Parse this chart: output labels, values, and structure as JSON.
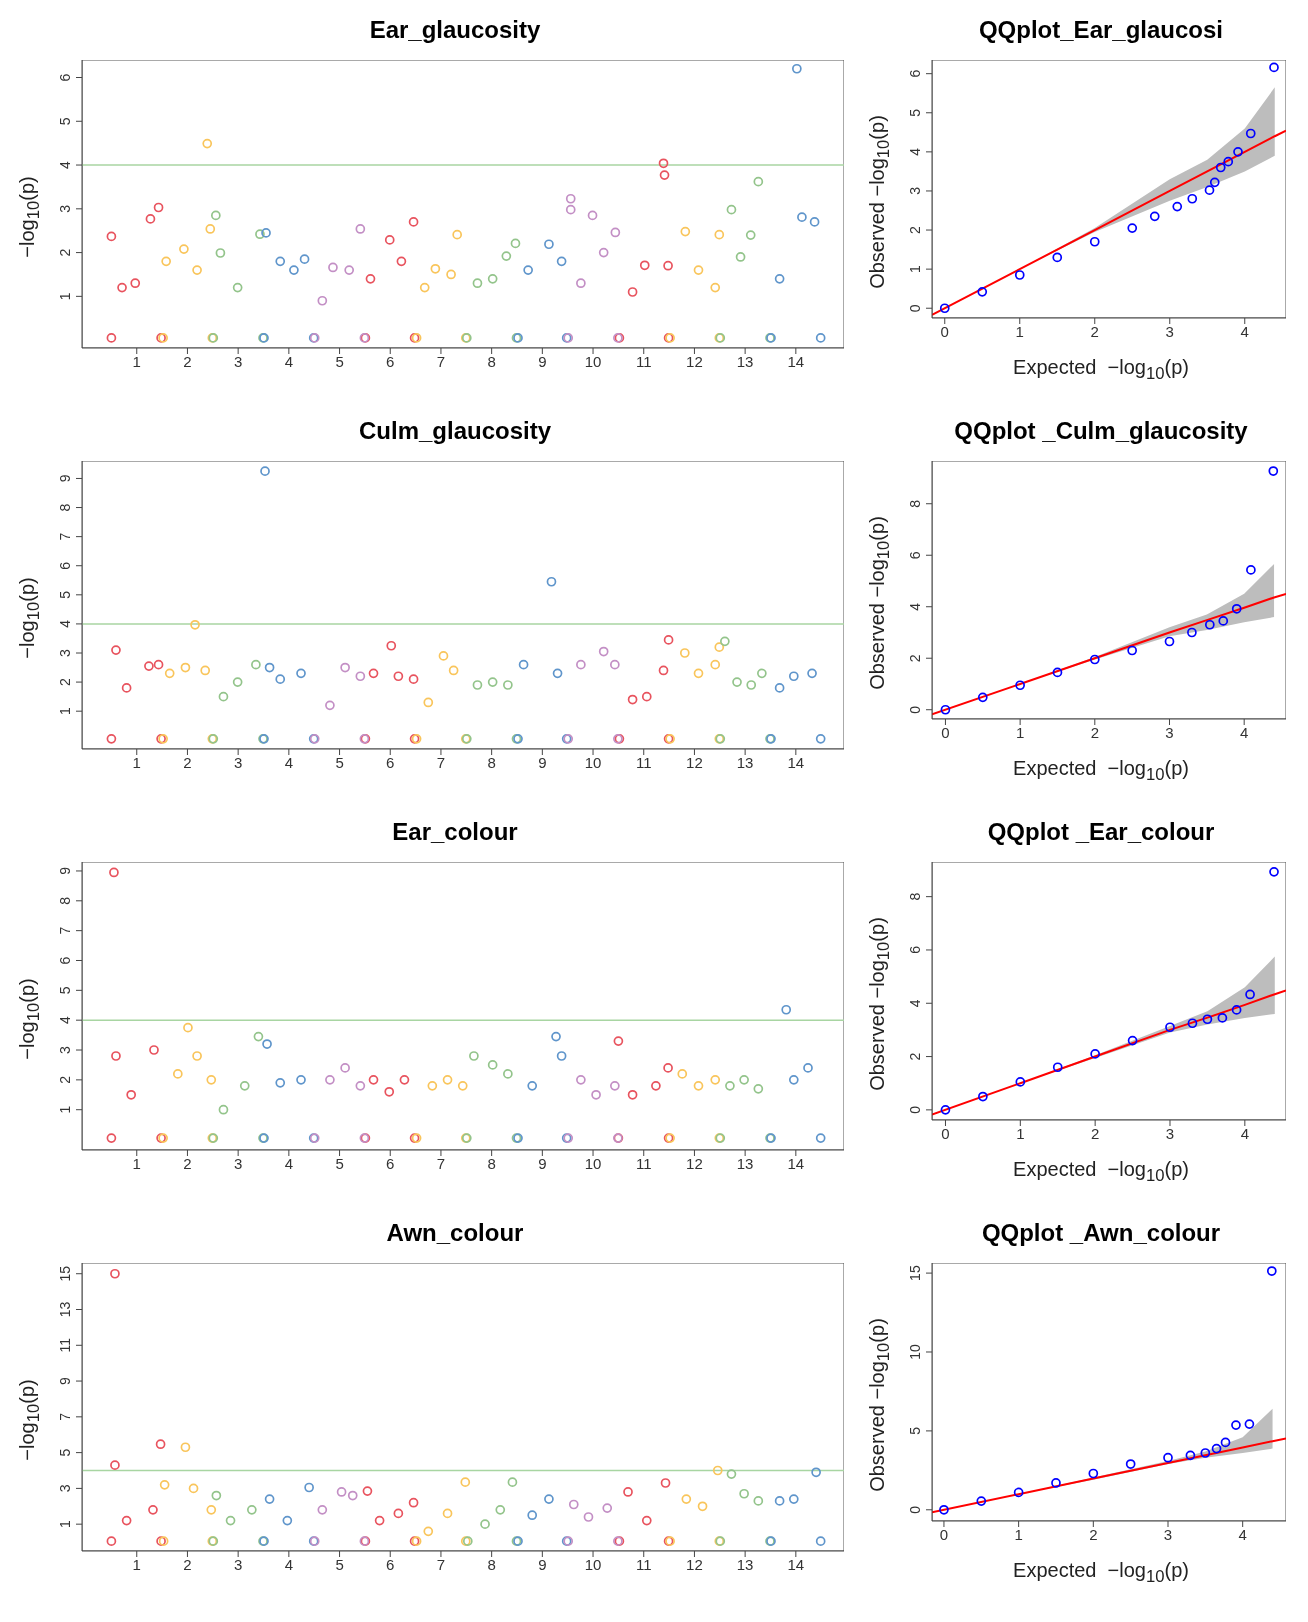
{
  "chart_data": [
    {
      "type": "scatter",
      "title": "Ear_glaucosity",
      "ylabel": "−log$_{10}$(p)",
      "marker": "circle",
      "xlim": [
        -0.08,
        14.95
      ],
      "xticks": [
        1,
        2,
        3,
        4,
        5,
        6,
        7,
        8,
        9,
        10,
        11,
        12,
        13,
        14
      ],
      "ylim": [
        -0.18,
        6.4
      ],
      "yticks": [
        1,
        2,
        3,
        4,
        5,
        6
      ],
      "ref_lines": [
        {
          "axis": "y",
          "value": 4,
          "color": "#a8d5a2"
        }
      ],
      "series": [
        {
          "color": "#e8535e",
          "x": [
            0.5,
            0.5,
            0.71,
            0.97,
            1.27,
            1.43,
            1.48,
            5.51,
            5.61,
            5.99,
            6.22,
            6.46,
            6.48,
            10.52,
            10.78,
            11.02,
            11.39,
            11.41,
            11.48,
            11.49
          ],
          "values": [
            0.05,
            2.37,
            1.2,
            1.3,
            2.77,
            3.03,
            0.05,
            0.05,
            1.4,
            2.29,
            1.8,
            2.7,
            0.05,
            0.05,
            1.1,
            1.71,
            4.04,
            3.77,
            1.7,
            0.05
          ]
        },
        {
          "color": "#f9c55b",
          "x": [
            1.52,
            1.58,
            1.93,
            2.19,
            2.39,
            2.45,
            2.49,
            6.52,
            6.68,
            6.89,
            7.2,
            7.32,
            7.49,
            11.52,
            11.82,
            12.08,
            12.41,
            12.49,
            12.49
          ],
          "values": [
            0.05,
            1.8,
            2.08,
            1.6,
            4.49,
            2.54,
            0.05,
            0.05,
            1.2,
            1.63,
            1.5,
            2.41,
            0.05,
            0.05,
            2.48,
            1.6,
            1.2,
            2.41,
            0.05
          ]
        },
        {
          "color": "#93c48b",
          "x": [
            2.51,
            2.56,
            2.65,
            2.99,
            3.43,
            3.49,
            7.51,
            7.72,
            8.02,
            8.29,
            8.47,
            8.49,
            12.51,
            12.73,
            12.91,
            13.11,
            13.26,
            13.49
          ],
          "values": [
            0.05,
            2.85,
            1.99,
            1.2,
            2.42,
            0.05,
            0.05,
            1.3,
            1.4,
            1.92,
            2.21,
            0.05,
            0.05,
            2.98,
            1.9,
            2.4,
            3.62,
            0.05
          ]
        },
        {
          "color": "#5f95cb",
          "x": [
            3.51,
            3.55,
            3.83,
            4.1,
            4.31,
            4.49,
            8.52,
            8.72,
            9.13,
            9.38,
            9.48,
            13.51,
            13.68,
            14.02,
            14.12,
            14.37,
            14.49
          ],
          "values": [
            0.05,
            2.45,
            1.8,
            1.6,
            1.85,
            0.05,
            0.05,
            1.6,
            2.19,
            1.8,
            0.05,
            0.05,
            1.4,
            6.2,
            2.81,
            2.7,
            0.05
          ]
        },
        {
          "color": "#c38fc5",
          "x": [
            4.51,
            4.66,
            4.87,
            5.19,
            5.41,
            5.49,
            9.51,
            9.56,
            9.56,
            9.76,
            9.99,
            10.21,
            10.44,
            10.49
          ],
          "values": [
            0.05,
            0.9,
            1.66,
            1.6,
            2.54,
            0.05,
            0.05,
            3.23,
            2.98,
            1.3,
            2.85,
            2.0,
            2.46,
            0.05
          ]
        }
      ]
    },
    {
      "type": "scatter",
      "title": "QQplot_Ear_glaucosi",
      "xlabel": "Expected  −log$_{10}$(p)",
      "ylabel": "Observed  −log$_{10}$(p)",
      "xlim": [
        -0.17,
        4.55
      ],
      "xticks": [
        0,
        1,
        2,
        3,
        4
      ],
      "ylim": [
        -0.25,
        6.35
      ],
      "yticks": [
        0,
        1,
        2,
        3,
        4,
        5,
        6
      ],
      "series": [
        {
          "marker": "circle",
          "color": "#0000ff",
          "x": [
            0,
            0.5,
            1,
            1.5,
            2,
            2.5,
            2.8,
            3.1,
            3.3,
            3.53,
            3.6,
            3.68,
            3.78,
            3.91,
            4.08,
            4.39
          ],
          "values": [
            0,
            0.42,
            0.85,
            1.3,
            1.7,
            2.05,
            2.35,
            2.6,
            2.8,
            3.02,
            3.22,
            3.6,
            3.75,
            4.0,
            4.47,
            6.16
          ]
        },
        {
          "type": "line",
          "color": "#ff0000",
          "x": [
            -0.17,
            1,
            2,
            3,
            3.5,
            4,
            4.4,
            4.55
          ],
          "values": [
            -0.17,
            1,
            2,
            3,
            3.5,
            4,
            4.4,
            4.54
          ],
          "lower": [
            null,
            1,
            1.95,
            2.75,
            3.1,
            3.5,
            3.9,
            null
          ],
          "upper": [
            null,
            1,
            2.05,
            3.3,
            3.8,
            4.6,
            5.65,
            null
          ]
        }
      ]
    },
    {
      "type": "scatter",
      "title": "Culm_glaucosity",
      "ylabel": "−log$_{10}$(p)",
      "marker": "circle",
      "xlim": [
        -0.08,
        14.95
      ],
      "xticks": [
        1,
        2,
        3,
        4,
        5,
        6,
        7,
        8,
        9,
        10,
        11,
        12,
        13,
        14
      ],
      "ylim": [
        -0.3,
        9.6
      ],
      "yticks": [
        1,
        2,
        3,
        4,
        5,
        6,
        7,
        8,
        9
      ],
      "ref_lines": [
        {
          "axis": "y",
          "value": 4,
          "color": "#a8d5a2"
        }
      ],
      "series": [
        {
          "color": "#e8535e",
          "x": [
            0.5,
            0.59,
            0.8,
            1.24,
            1.43,
            1.48,
            5.51,
            5.67,
            6.02,
            6.16,
            6.46,
            6.48,
            10.52,
            10.78,
            11.06,
            11.39,
            11.49,
            11.49
          ],
          "values": [
            0.05,
            3.1,
            1.8,
            2.55,
            2.6,
            0.05,
            0.05,
            2.3,
            3.25,
            2.2,
            2.1,
            0.05,
            0.05,
            1.4,
            1.5,
            2.4,
            3.45,
            0.05
          ]
        },
        {
          "color": "#f9c55b",
          "x": [
            1.52,
            1.65,
            1.96,
            2.15,
            2.35,
            2.49,
            6.52,
            6.75,
            7.05,
            7.25,
            7.49,
            11.52,
            11.81,
            12.08,
            12.41,
            12.49,
            12.49
          ],
          "values": [
            0.05,
            2.3,
            2.5,
            3.97,
            2.4,
            0.05,
            0.05,
            1.3,
            2.9,
            2.4,
            0.05,
            0.05,
            3.0,
            2.3,
            2.6,
            3.2,
            0.05
          ]
        },
        {
          "color": "#93c48b",
          "x": [
            2.51,
            2.71,
            2.99,
            3.35,
            3.49,
            7.51,
            7.72,
            8.02,
            8.32,
            8.49,
            12.51,
            12.6,
            12.84,
            13.12,
            13.33,
            13.49
          ],
          "values": [
            0.05,
            1.5,
            2.0,
            2.6,
            0.05,
            0.05,
            1.9,
            2.0,
            1.9,
            0.05,
            0.05,
            3.4,
            2.0,
            1.9,
            2.3,
            0.05
          ]
        },
        {
          "color": "#5f95cb",
          "x": [
            3.51,
            3.53,
            3.62,
            3.83,
            4.24,
            4.49,
            8.52,
            8.63,
            9.18,
            9.3,
            9.48,
            13.51,
            13.68,
            13.96,
            14.32,
            14.49
          ],
          "values": [
            0.05,
            9.25,
            2.5,
            2.1,
            2.3,
            0.05,
            0.05,
            2.6,
            5.45,
            2.3,
            0.05,
            0.05,
            1.8,
            2.2,
            2.3,
            0.05
          ]
        },
        {
          "color": "#c38fc5",
          "x": [
            4.51,
            4.81,
            5.11,
            5.41,
            5.49,
            9.51,
            9.76,
            10.21,
            10.43,
            10.49
          ],
          "values": [
            0.05,
            1.2,
            2.5,
            2.2,
            0.05,
            0.05,
            2.6,
            3.05,
            2.6,
            0.05
          ]
        }
      ]
    },
    {
      "type": "scatter",
      "title": "QQplot _Culm_glaucosity",
      "xlabel": "Expected  −log$_{10}$(p)",
      "ylabel": "Observed  −log$_{10}$(p)",
      "xlim": [
        -0.18,
        4.56
      ],
      "xticks": [
        0,
        1,
        2,
        3,
        4
      ],
      "ylim": [
        -0.36,
        9.66
      ],
      "yticks": [
        0,
        2,
        4,
        6,
        8
      ],
      "series": [
        {
          "marker": "circle",
          "color": "#0000ff",
          "x": [
            0,
            0.5,
            1,
            1.5,
            2,
            2.5,
            3,
            3.3,
            3.54,
            3.72,
            3.9,
            4.09,
            4.39
          ],
          "values": [
            0,
            0.48,
            0.95,
            1.45,
            1.95,
            2.3,
            2.65,
            3.0,
            3.3,
            3.45,
            3.92,
            5.43,
            9.27
          ]
        },
        {
          "type": "line",
          "color": "#ff0000",
          "x": [
            -0.18,
            1,
            2,
            3,
            3.5,
            4,
            4.4,
            4.56
          ],
          "values": [
            -0.18,
            1,
            2,
            3,
            3.48,
            3.96,
            4.36,
            4.5
          ],
          "lower": [
            null,
            1,
            1.95,
            2.85,
            3.1,
            3.4,
            3.6,
            null
          ],
          "upper": [
            null,
            1,
            2.05,
            3.2,
            3.7,
            4.5,
            5.66,
            null
          ]
        }
      ]
    },
    {
      "type": "scatter",
      "title": "Ear_colour",
      "ylabel": "−log$_{10}$(p)",
      "marker": "circle",
      "xlim": [
        -0.08,
        14.95
      ],
      "xticks": [
        1,
        2,
        3,
        4,
        5,
        6,
        7,
        8,
        9,
        10,
        11,
        12,
        13,
        14
      ],
      "ylim": [
        -0.35,
        9.3
      ],
      "yticks": [
        1,
        2,
        3,
        4,
        5,
        6,
        7,
        8,
        9
      ],
      "ref_lines": [
        {
          "axis": "y",
          "value": 4,
          "color": "#a8d5a2"
        }
      ],
      "series": [
        {
          "color": "#e8535e",
          "x": [
            0.5,
            0.55,
            0.59,
            0.89,
            1.34,
            1.48,
            5.51,
            5.67,
            5.98,
            6.28,
            6.48,
            10.5,
            10.5,
            10.78,
            11.24,
            11.48,
            11.49
          ],
          "values": [
            0.05,
            8.95,
            2.8,
            1.5,
            3.0,
            0.05,
            0.05,
            2.0,
            1.6,
            2.0,
            0.05,
            0.05,
            3.3,
            1.5,
            1.8,
            2.4,
            0.05
          ]
        },
        {
          "color": "#f9c55b",
          "x": [
            1.52,
            1.81,
            2.01,
            2.19,
            2.47,
            2.49,
            6.52,
            6.83,
            7.13,
            7.43,
            7.49,
            11.52,
            11.76,
            12.08,
            12.41,
            12.49
          ],
          "values": [
            0.05,
            2.2,
            3.75,
            2.8,
            2.0,
            0.05,
            0.05,
            1.8,
            2.0,
            1.8,
            0.05,
            0.05,
            2.2,
            1.8,
            2.0,
            0.05
          ]
        },
        {
          "color": "#93c48b",
          "x": [
            2.51,
            2.71,
            3.13,
            3.4,
            3.49,
            7.51,
            7.65,
            8.02,
            8.32,
            8.49,
            12.51,
            12.7,
            12.98,
            13.26,
            13.49
          ],
          "values": [
            0.05,
            1.0,
            1.8,
            3.45,
            0.05,
            0.05,
            2.8,
            2.5,
            2.2,
            0.05,
            0.05,
            1.8,
            2.0,
            1.7,
            0.05
          ]
        },
        {
          "color": "#5f95cb",
          "x": [
            3.51,
            3.57,
            3.83,
            4.24,
            4.49,
            8.52,
            8.8,
            9.27,
            9.38,
            9.48,
            13.51,
            13.81,
            13.96,
            14.24,
            14.49
          ],
          "values": [
            0.05,
            3.2,
            1.9,
            2.0,
            0.05,
            0.05,
            1.8,
            3.45,
            2.8,
            0.05,
            0.05,
            4.35,
            2.0,
            2.4,
            0.05
          ]
        },
        {
          "color": "#c38fc5",
          "x": [
            4.51,
            4.81,
            5.11,
            5.41,
            5.49,
            9.51,
            9.76,
            10.06,
            10.43,
            10.49
          ],
          "values": [
            0.05,
            2.0,
            2.4,
            1.8,
            0.05,
            0.05,
            2.0,
            1.5,
            1.8,
            0.05
          ]
        }
      ]
    },
    {
      "type": "scatter",
      "title": "QQplot _Ear_colour",
      "xlabel": "Expected  −log$_{10}$(p)",
      "ylabel": "Observed  −log$_{10}$(p)",
      "xlim": [
        -0.18,
        4.55
      ],
      "xticks": [
        0,
        1,
        2,
        3,
        4
      ],
      "ylim": [
        -0.38,
        9.3
      ],
      "yticks": [
        0,
        2,
        4,
        6,
        8
      ],
      "series": [
        {
          "marker": "circle",
          "color": "#0000ff",
          "x": [
            0,
            0.5,
            1,
            1.5,
            2,
            2.5,
            3,
            3.3,
            3.5,
            3.7,
            3.89,
            4.07,
            4.39
          ],
          "values": [
            0,
            0.5,
            1.05,
            1.6,
            2.1,
            2.6,
            3.1,
            3.25,
            3.4,
            3.45,
            3.75,
            4.33,
            8.93
          ]
        },
        {
          "type": "line",
          "color": "#ff0000",
          "x": [
            -0.18,
            1,
            2,
            3,
            3.5,
            4,
            4.4,
            4.55
          ],
          "values": [
            -0.18,
            1,
            2,
            3,
            3.46,
            3.94,
            4.34,
            4.48
          ],
          "lower": [
            null,
            1,
            1.95,
            2.9,
            3.2,
            3.45,
            3.6,
            null
          ],
          "upper": [
            null,
            1,
            2.05,
            3.15,
            3.7,
            4.6,
            5.75,
            null
          ]
        }
      ]
    },
    {
      "type": "scatter",
      "title": "Awn_colour",
      "ylabel": "−log$_{10}$(p)",
      "marker": "circle",
      "xlim": [
        -0.08,
        14.95
      ],
      "xticks": [
        1,
        2,
        3,
        4,
        5,
        6,
        7,
        8,
        9,
        10,
        11,
        12,
        13,
        14
      ],
      "ylim": [
        -0.5,
        15.6
      ],
      "yticks": [
        1,
        3,
        5,
        7,
        9,
        11,
        13,
        15
      ],
      "ref_lines": [
        {
          "axis": "y",
          "value": 4,
          "color": "#a8d5a2"
        }
      ],
      "series": [
        {
          "color": "#e8535e",
          "x": [
            0.5,
            0.57,
            0.57,
            0.8,
            1.32,
            1.47,
            1.48,
            5.51,
            5.55,
            5.79,
            6.16,
            6.46,
            6.48,
            10.52,
            10.69,
            11.06,
            11.43,
            11.49
          ],
          "values": [
            0.05,
            15.0,
            4.3,
            1.2,
            1.8,
            5.47,
            0.05,
            0.05,
            2.85,
            1.2,
            1.6,
            2.2,
            0.05,
            0.05,
            2.8,
            1.2,
            3.3,
            0.05
          ]
        },
        {
          "color": "#f9c55b",
          "x": [
            1.53,
            1.55,
            1.96,
            2.12,
            2.47,
            2.49,
            6.52,
            6.75,
            7.13,
            7.48,
            7.49,
            11.52,
            11.84,
            12.16,
            12.46,
            12.49
          ],
          "values": [
            0.05,
            3.2,
            5.3,
            3.0,
            1.8,
            0.05,
            0.05,
            0.6,
            1.6,
            3.35,
            0.05,
            0.05,
            2.4,
            2.0,
            4.0,
            0.05
          ]
        },
        {
          "color": "#93c48b",
          "x": [
            2.51,
            2.57,
            2.85,
            3.27,
            3.49,
            7.53,
            7.87,
            8.17,
            8.41,
            8.49,
            12.51,
            12.73,
            12.98,
            13.26,
            13.49
          ],
          "values": [
            0.05,
            2.6,
            1.2,
            1.8,
            0.05,
            0.05,
            1.0,
            1.8,
            3.35,
            0.05,
            0.05,
            3.8,
            2.7,
            2.3,
            0.05
          ]
        },
        {
          "color": "#5f95cb",
          "x": [
            3.51,
            3.62,
            3.97,
            4.4,
            4.49,
            8.52,
            8.8,
            9.13,
            9.48,
            13.51,
            13.68,
            13.96,
            14.4,
            14.49
          ],
          "values": [
            0.05,
            2.4,
            1.2,
            3.05,
            0.05,
            0.05,
            1.5,
            2.4,
            0.05,
            0.05,
            2.3,
            2.4,
            3.9,
            0.05
          ]
        },
        {
          "color": "#c38fc5",
          "x": [
            4.51,
            4.66,
            5.04,
            5.26,
            5.49,
            9.51,
            9.62,
            9.91,
            10.28,
            10.49
          ],
          "values": [
            0.05,
            1.8,
            2.8,
            2.6,
            0.05,
            0.05,
            2.1,
            1.4,
            1.9,
            0.05
          ]
        }
      ]
    },
    {
      "type": "scatter",
      "title": "QQplot _Awn_colour",
      "xlabel": "Expected  −log$_{10}$(p)",
      "ylabel": "Observed  −log$_{10}$(p)",
      "xlim": [
        -0.16,
        4.58
      ],
      "xticks": [
        0,
        1,
        2,
        3,
        4
      ],
      "ylim": [
        -0.71,
        15.64
      ],
      "yticks": [
        0,
        5,
        10,
        15
      ],
      "series": [
        {
          "marker": "circle",
          "color": "#0000ff",
          "x": [
            0,
            0.5,
            1,
            1.5,
            2,
            2.5,
            3,
            3.3,
            3.5,
            3.65,
            3.77,
            3.91,
            4.09,
            4.39
          ],
          "values": [
            0,
            0.55,
            1.1,
            1.7,
            2.3,
            2.9,
            3.3,
            3.45,
            3.6,
            3.88,
            4.27,
            5.37,
            5.43,
            15.13
          ]
        },
        {
          "type": "line",
          "color": "#ff0000",
          "x": [
            -0.16,
            1,
            2,
            3,
            3.5,
            4,
            4.4,
            4.58
          ],
          "values": [
            -0.16,
            0.99,
            1.98,
            2.96,
            3.46,
            3.95,
            4.35,
            4.52
          ],
          "lower": [
            null,
            0.99,
            1.9,
            2.9,
            3.3,
            3.6,
            3.88,
            null
          ],
          "upper": [
            null,
            0.99,
            2.05,
            3.1,
            3.7,
            4.6,
            6.4,
            null
          ]
        }
      ]
    }
  ]
}
